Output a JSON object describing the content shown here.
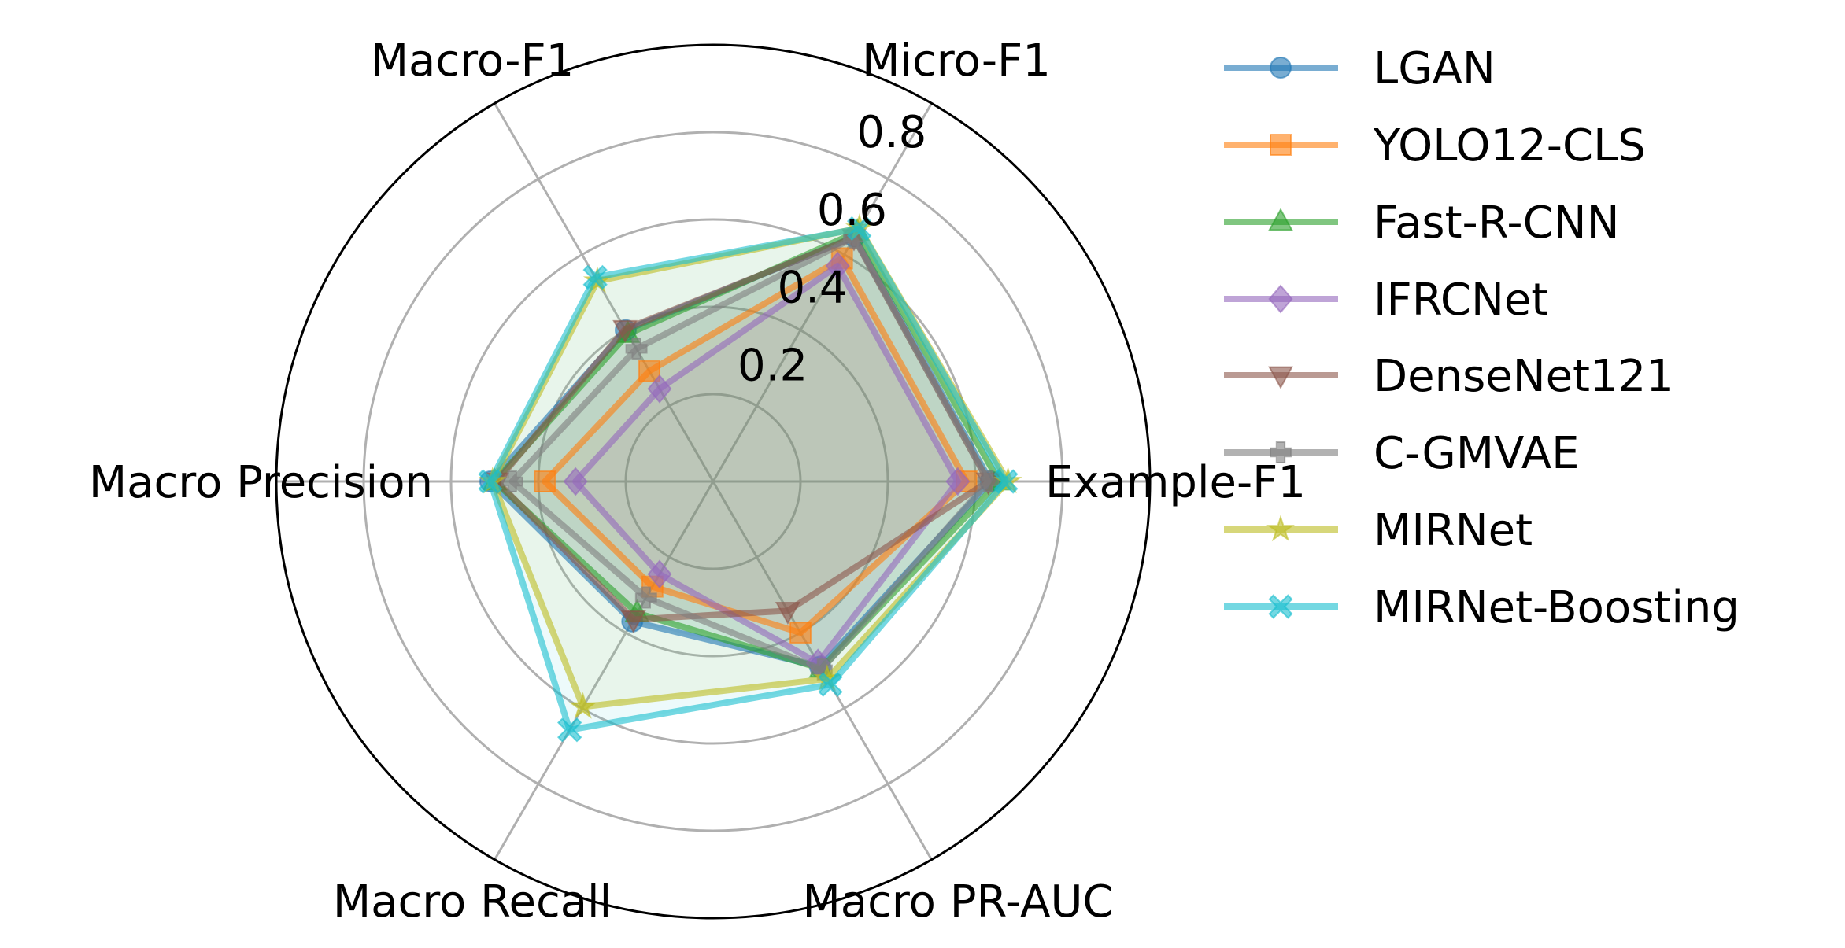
{
  "chart_data": {
    "type": "radar",
    "axes": [
      "Micro-F1",
      "Example-F1",
      "Macro PR-AUC",
      "Macro Recall",
      "Macro Precision",
      "Macro-F1"
    ],
    "rlim": [
      0,
      1.0
    ],
    "rticks": [
      "0.2",
      "0.4",
      "0.6",
      "0.8"
    ],
    "grid": true,
    "legend": "right",
    "series": [
      {
        "name": "LGAN",
        "color": "#1f77b4",
        "marker": "circle",
        "values": [
          0.647,
          0.635,
          0.49,
          0.37,
          0.51,
          0.4
        ]
      },
      {
        "name": "YOLO12-CLS",
        "color": "#ff7f0e",
        "marker": "square",
        "values": [
          0.59,
          0.58,
          0.4,
          0.278,
          0.385,
          0.292
        ]
      },
      {
        "name": "Fast-R-CNN",
        "color": "#2ca02c",
        "marker": "triangle-up",
        "values": [
          0.66,
          0.655,
          0.495,
          0.348,
          0.5,
          0.39
        ]
      },
      {
        "name": "IFRCNet",
        "color": "#9467bd",
        "marker": "diamond",
        "values": [
          0.57,
          0.56,
          0.48,
          0.245,
          0.315,
          0.245
        ]
      },
      {
        "name": "DenseNet121",
        "color": "#8c564b",
        "marker": "triangle-down",
        "values": [
          0.645,
          0.63,
          0.342,
          0.365,
          0.495,
          0.403
        ]
      },
      {
        "name": "C-GMVAE",
        "color": "#7f7f7f",
        "marker": "plus",
        "values": [
          0.645,
          0.63,
          0.497,
          0.307,
          0.46,
          0.351
        ]
      },
      {
        "name": "MIRNet",
        "color": "#bcbd22",
        "marker": "star",
        "values": [
          0.67,
          0.675,
          0.522,
          0.596,
          0.505,
          0.53
        ]
      },
      {
        "name": "MIRNet-Boosting",
        "color": "#17becf",
        "marker": "x",
        "values": [
          0.669,
          0.67,
          0.537,
          0.657,
          0.51,
          0.54
        ]
      }
    ]
  }
}
